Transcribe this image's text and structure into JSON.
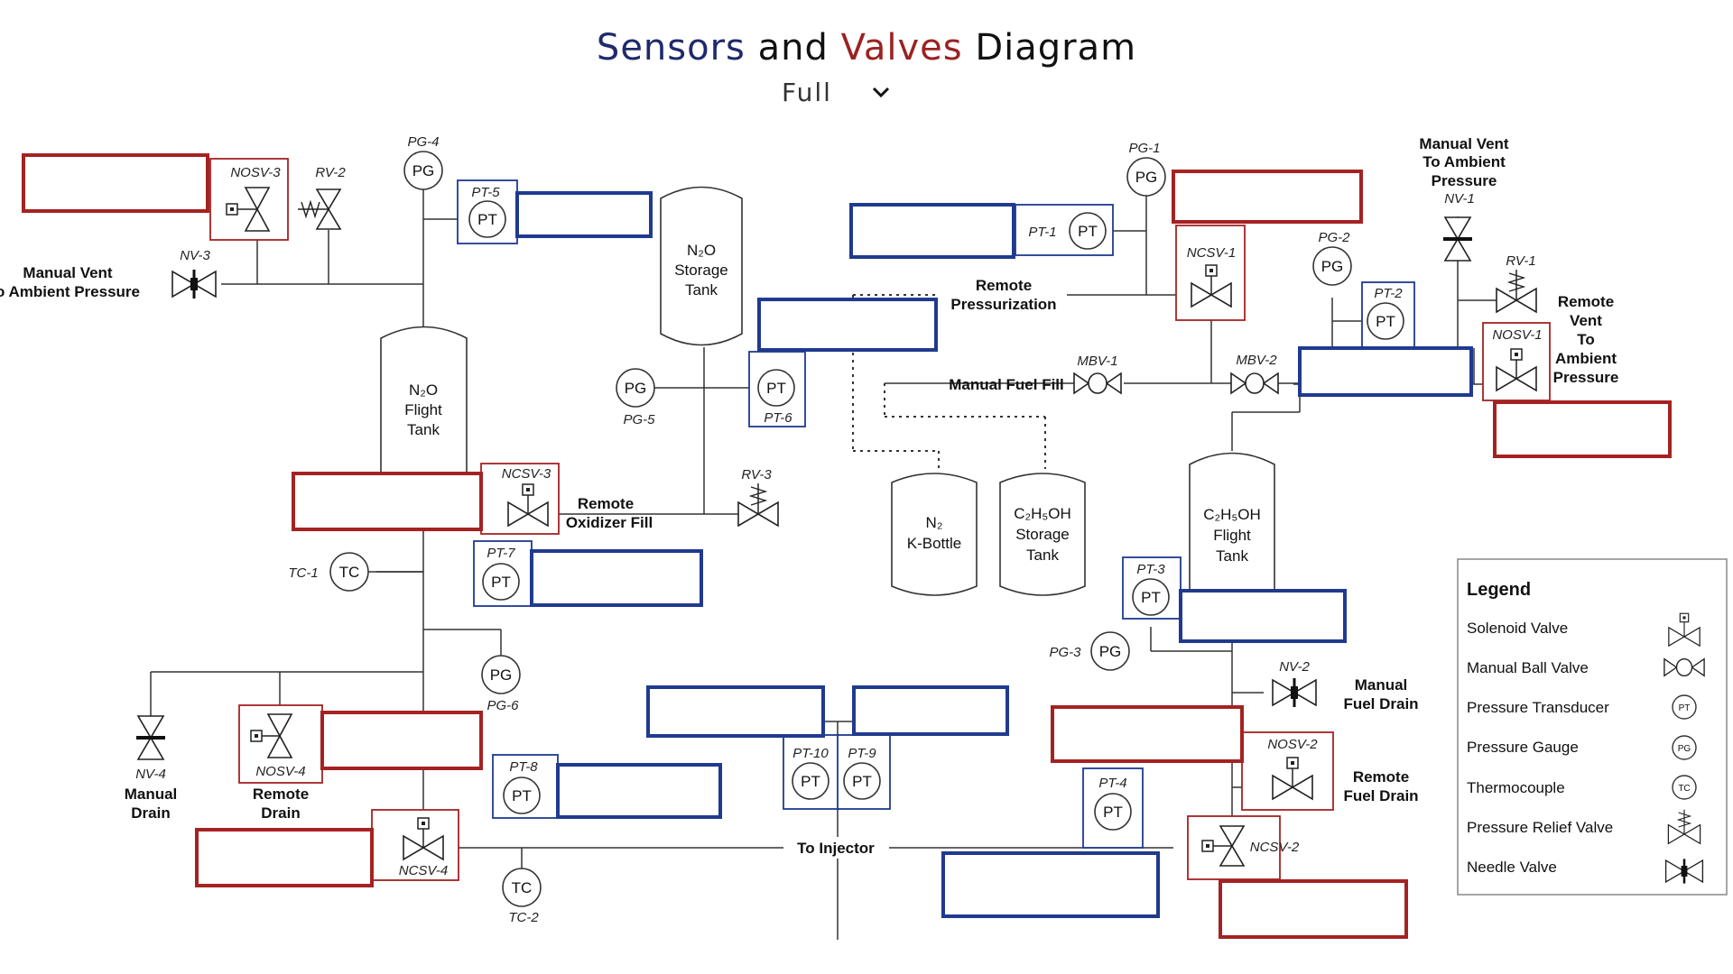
{
  "header": {
    "title_part1": "Sensors",
    "title_part2": "and",
    "title_part3": "Valves",
    "title_part4": "Diagram",
    "view_selected": "Full",
    "chevron_icon": "chevron-down-icon"
  },
  "colors": {
    "title_blue": "#1f2a6b",
    "title_red": "#9b2222",
    "box_red": "#a52222",
    "box_blue": "#1f3a8f"
  },
  "tags": {
    "pg4": "PG-4",
    "pg1": "PG-1",
    "pg2": "PG-2",
    "pg3": "PG-3",
    "pg5": "PG-5",
    "pg6": "PG-6",
    "pt1": "PT-1",
    "pt2": "PT-2",
    "pt3": "PT-3",
    "pt4": "PT-4",
    "pt5": "PT-5",
    "pt6": "PT-6",
    "pt7": "PT-7",
    "pt8": "PT-8",
    "pt9": "PT-9",
    "pt10": "PT-10",
    "tc1": "TC-1",
    "tc2": "TC-2",
    "nosv3": "NOSV-3",
    "nosv1": "NOSV-1",
    "nosv2": "NOSV-2",
    "nosv4": "NOSV-4",
    "ncsv1": "NCSV-1",
    "ncsv2": "NCSV-2",
    "ncsv3": "NCSV-3",
    "ncsv4": "NCSV-4",
    "rv1": "RV-1",
    "rv2": "RV-2",
    "rv3": "RV-3",
    "nv1": "NV-1",
    "nv2": "NV-2",
    "nv3": "NV-3",
    "nv4": "NV-4",
    "mbv1": "MBV-1",
    "mbv2": "MBV-2"
  },
  "symbols": {
    "pg": "PG",
    "pt": "PT",
    "tc": "TC"
  },
  "labels": {
    "manual_vent_left_1": "Manual Vent",
    "manual_vent_left_2": "o Ambient Pressure",
    "manual_vent_top_1": "Manual Vent",
    "manual_vent_top_2": "To Ambient",
    "manual_vent_top_3": "Pressure",
    "remote_pressurization_1": "Remote",
    "remote_pressurization_2": "Pressurization",
    "manual_fuel_fill": "Manual Fuel Fill",
    "remote_vent_1": "Remote",
    "remote_vent_2": "Vent",
    "remote_vent_3": "To",
    "remote_vent_4": "Ambient",
    "remote_vent_5": "Pressure",
    "remote_oxidizer_fill_1": "Remote",
    "remote_oxidizer_fill_2": "Oxidizer Fill",
    "manual_fuel_drain_1": "Manual",
    "manual_fuel_drain_2": "Fuel Drain",
    "remote_fuel_drain_1": "Remote",
    "remote_fuel_drain_2": "Fuel Drain",
    "manual_drain_1": "Manual",
    "manual_drain_2": "Drain",
    "remote_drain_1": "Remote",
    "remote_drain_2": "Drain",
    "to_injector": "To Injector"
  },
  "tanks": {
    "n2o_storage": [
      "N₂O",
      "Storage",
      "Tank"
    ],
    "n2o_flight": [
      "N₂O",
      "Flight",
      "Tank"
    ],
    "n2_kbottle": [
      "N₂",
      "K-Bottle"
    ],
    "c2h5oh_storage": [
      "C₂H₅OH",
      "Storage",
      "Tank"
    ],
    "c2h5oh_flight": [
      "C₂H₅OH",
      "Flight",
      "Tank"
    ]
  },
  "legend": {
    "title": "Legend",
    "items": [
      "Solenoid Valve",
      "Manual Ball Valve",
      "Pressure Transducer",
      "Pressure Gauge",
      "Thermocouple",
      "Pressure Relief Valve",
      "Needle Valve"
    ],
    "icons": [
      "solenoid-valve-icon",
      "ball-valve-icon",
      "pressure-transducer-icon",
      "pressure-gauge-icon",
      "thermocouple-icon",
      "relief-valve-icon",
      "needle-valve-icon"
    ]
  }
}
